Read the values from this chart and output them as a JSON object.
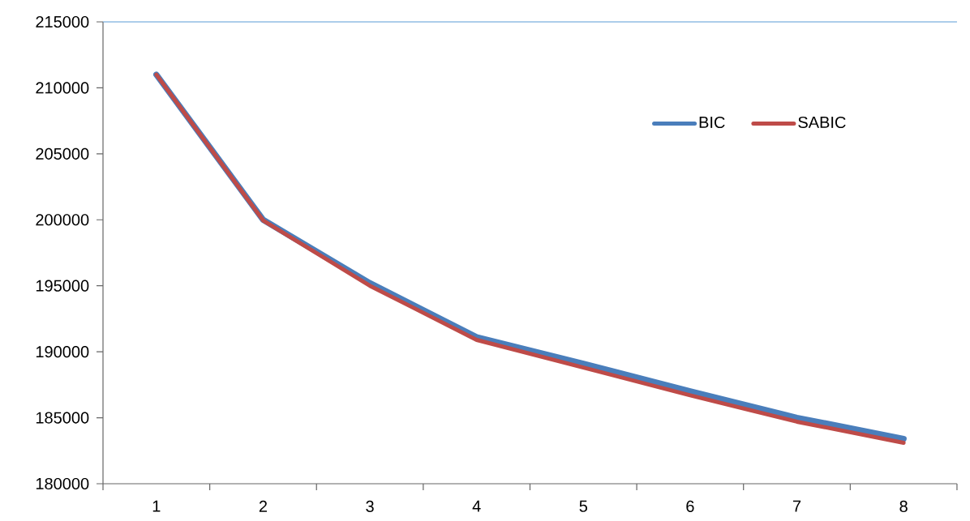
{
  "chart_data": {
    "type": "line",
    "categories": [
      "1",
      "2",
      "3",
      "4",
      "5",
      "6",
      "7",
      "8"
    ],
    "series": [
      {
        "name": "BIC",
        "color": "#4a7ebb",
        "values": [
          211000,
          200000,
          195200,
          191100,
          189100,
          187000,
          185000,
          183400
        ]
      },
      {
        "name": "SABIC",
        "color": "#be4b48",
        "values": [
          211000,
          199950,
          195000,
          190900,
          188800,
          186700,
          184700,
          183100
        ]
      }
    ],
    "ylim": [
      180000,
      215000
    ],
    "yticks": [
      180000,
      185000,
      190000,
      195000,
      200000,
      205000,
      210000,
      215000
    ],
    "legend": "top right",
    "marker": "none",
    "line_style": "solid"
  }
}
